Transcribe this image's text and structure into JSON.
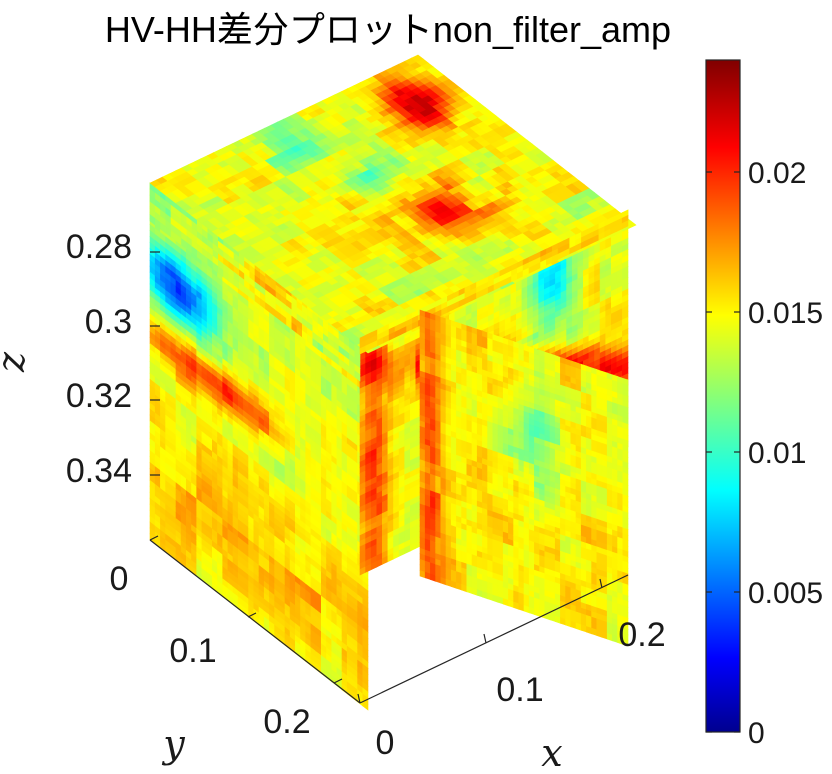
{
  "chart_data": {
    "type": "heatmap",
    "title": "HV-HH差分プロットnon_filter_amp",
    "xlabel": "x",
    "ylabel": "y",
    "zlabel": "z",
    "x_ticks": [
      "0",
      "0.1",
      "0.2"
    ],
    "y_ticks": [
      "0",
      "0.1",
      "0.2"
    ],
    "z_ticks": [
      "0.28",
      "0.3",
      "0.32",
      "0.34"
    ],
    "colorbar": {
      "colormap": "jet",
      "range": [
        0,
        0.024
      ],
      "ticks": [
        "0",
        "0.005",
        "0.01",
        "0.015",
        "0.02"
      ],
      "tick_values": [
        0,
        0.005,
        0.01,
        0.015,
        0.02
      ]
    },
    "colors": {
      "jet_stops": [
        "#00008f",
        "#0000ff",
        "#00ffff",
        "#ffff00",
        "#ff0000",
        "#800000"
      ]
    }
  }
}
